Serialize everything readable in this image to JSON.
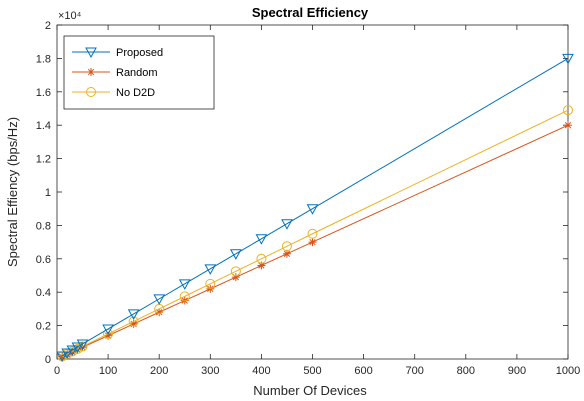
{
  "chart_data": {
    "type": "line",
    "title": "Spectral Efficiency",
    "xlabel": "Number Of Devices",
    "ylabel": "Spectral Effiency (bps/Hz)",
    "exponent_label": "×10⁴",
    "xlim": [
      0,
      1000
    ],
    "ylim": [
      0,
      2
    ],
    "x_ticks": [
      0,
      100,
      200,
      300,
      400,
      500,
      600,
      700,
      800,
      900,
      1000
    ],
    "y_ticks": [
      0,
      0.2,
      0.4,
      0.6,
      0.8,
      1,
      1.2,
      1.4,
      1.6,
      1.8,
      2
    ],
    "x_tick_labels": [
      "0",
      "100",
      "200",
      "300",
      "400",
      "500",
      "600",
      "700",
      "800",
      "900",
      "1000"
    ],
    "y_tick_labels": [
      "0",
      "0.2",
      "0.4",
      "0.6",
      "0.8",
      "1",
      "1.2",
      "1.4",
      "1.6",
      "1.8",
      "2"
    ],
    "grid": false,
    "legend_position": "top-left",
    "x": [
      10,
      20,
      30,
      40,
      50,
      100,
      150,
      200,
      250,
      300,
      350,
      400,
      450,
      500,
      1000
    ],
    "series": [
      {
        "name": "Proposed",
        "color": "#0072BD",
        "marker": "triangle-down",
        "values": [
          0.018,
          0.036,
          0.054,
          0.072,
          0.09,
          0.18,
          0.27,
          0.36,
          0.45,
          0.54,
          0.63,
          0.72,
          0.81,
          0.9,
          1.8
        ]
      },
      {
        "name": "Random",
        "color": "#D95319",
        "marker": "asterisk",
        "values": [
          0.014,
          0.028,
          0.042,
          0.056,
          0.07,
          0.14,
          0.21,
          0.28,
          0.35,
          0.42,
          0.49,
          0.56,
          0.63,
          0.7,
          1.4
        ]
      },
      {
        "name": "No D2D",
        "color": "#EDB120",
        "marker": "circle",
        "values": [
          0.015,
          0.03,
          0.045,
          0.06,
          0.075,
          0.15,
          0.225,
          0.3,
          0.375,
          0.45,
          0.525,
          0.6,
          0.675,
          0.75,
          1.49
        ]
      }
    ]
  }
}
